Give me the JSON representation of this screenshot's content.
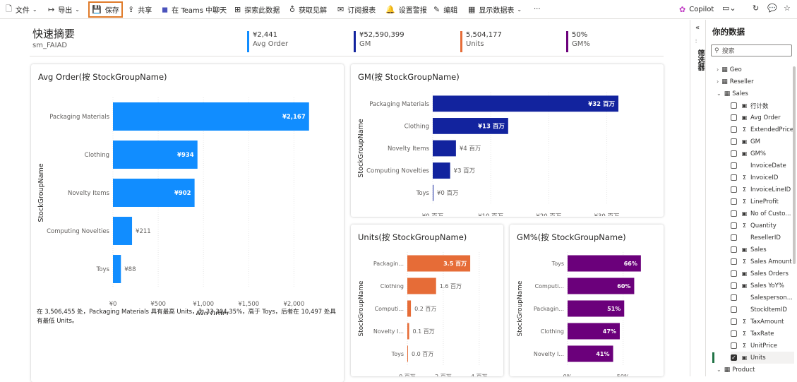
{
  "toolbar": {
    "file": "文件",
    "export": "导出",
    "save": "保存",
    "share": "共享",
    "teams": "在 Teams 中聊天",
    "explore": "探索此数据",
    "insights": "获取见解",
    "subscribe": "订阅报表",
    "alert": "设置警报",
    "edit": "编辑",
    "show_table": "显示数据表",
    "more": "···",
    "copilot": "Copilot"
  },
  "summary": {
    "title": "快速摘要",
    "subtitle": "sm_FAIAD"
  },
  "kpis": [
    {
      "value": "¥2,441",
      "label": "Avg Order",
      "color": "#118dff"
    },
    {
      "value": "¥52,590,399",
      "label": "GM",
      "color": "#12239e"
    },
    {
      "value": "5,504,177",
      "label": "Units",
      "color": "#e66c37"
    },
    {
      "value": "50%",
      "label": "GM%",
      "color": "#6b007b"
    }
  ],
  "charts": {
    "avg_order": {
      "title": "Avg Order(按 StockGroupName)",
      "xlabel": "Avg Order",
      "ylabel": "StockGroupName",
      "color": "#118dff",
      "categories": [
        "Packaging Materials",
        "Clothing",
        "Novelty Items",
        "Computing Novelties",
        "Toys"
      ],
      "values": [
        2167,
        934,
        902,
        211,
        88
      ],
      "data_labels": [
        "¥2,167",
        "¥934",
        "¥902",
        "¥211",
        "¥88"
      ],
      "xmax": 2200,
      "ticks": [
        0,
        500,
        1000,
        1500,
        2000
      ],
      "tick_labels": [
        "¥0",
        "¥500",
        "¥1,000",
        "¥1,500",
        "¥2,000"
      ],
      "narrative": "在 3,506,455 处，Packaging Materials 具有最高 Units，为 33,304.35%，高于 Toys，后者在 10,497 处具有最低 Units。"
    },
    "gm": {
      "title": "GM(按 StockGroupName)",
      "xlabel": "GM",
      "ylabel": "StockGroupName",
      "color": "#12239e",
      "categories": [
        "Packaging Materials",
        "Clothing",
        "Novelty Items",
        "Computing Novelties",
        "Toys"
      ],
      "values": [
        32,
        13,
        4,
        3,
        0
      ],
      "data_labels": [
        "¥32 百万",
        "¥13 百万",
        "¥4 百万",
        "¥3 百万",
        "¥0 百万"
      ],
      "xmax": 32,
      "ticks": [
        0,
        10,
        20,
        30
      ],
      "tick_labels": [
        "¥0 百万",
        "¥10 百万",
        "¥20 百万",
        "¥30 百万"
      ]
    },
    "units": {
      "title": "Units(按 StockGroupName)",
      "xlabel": "Units",
      "ylabel": "StockGroupName",
      "color": "#e66c37",
      "categories": [
        "Packagin...",
        "Clothing",
        "Computi...",
        "Novelty I...",
        "Toys"
      ],
      "values": [
        3.5,
        1.6,
        0.2,
        0.1,
        0.0
      ],
      "data_labels": [
        "3.5 百万",
        "1.6 百万",
        "0.2 百万",
        "0.1 百万",
        "0.0 百万"
      ],
      "xmax": 4.4,
      "ticks": [
        0,
        2,
        4
      ],
      "tick_labels": [
        "0 百万",
        "2 百万",
        "4 百万"
      ]
    },
    "gm_pct": {
      "title": "GM%(按 StockGroupName)",
      "xlabel": "GM%",
      "ylabel": "StockGroupName",
      "color": "#6b007b",
      "categories": [
        "Toys",
        "Computi...",
        "Packagin...",
        "Clothing",
        "Novelty I..."
      ],
      "values": [
        66,
        60,
        51,
        47,
        41
      ],
      "data_labels": [
        "66%",
        "60%",
        "51%",
        "47%",
        "41%"
      ],
      "xmax": 68,
      "ticks": [
        0,
        50
      ],
      "tick_labels": [
        "0%",
        "50%"
      ]
    }
  },
  "filter_pane": {
    "label": "筛选器"
  },
  "data_pane": {
    "title": "你的数据",
    "search_placeholder": "搜索",
    "tables": [
      {
        "name": "Geo",
        "expanded": false
      },
      {
        "name": "Reseller",
        "expanded": false
      },
      {
        "name": "Sales",
        "expanded": true
      },
      {
        "name": "Product",
        "expanded": true
      }
    ],
    "sales_fields": [
      {
        "name": "行计数",
        "type": "measure",
        "checked": false
      },
      {
        "name": "Avg Order",
        "type": "measure",
        "checked": false
      },
      {
        "name": "ExtendedPrice",
        "type": "sum",
        "checked": false
      },
      {
        "name": "GM",
        "type": "measure",
        "checked": false
      },
      {
        "name": "GM%",
        "type": "measure",
        "checked": false
      },
      {
        "name": "InvoiceDate",
        "type": "none",
        "checked": false
      },
      {
        "name": "InvoiceID",
        "type": "sum",
        "checked": false
      },
      {
        "name": "InvoiceLineID",
        "type": "sum",
        "checked": false
      },
      {
        "name": "LineProfit",
        "type": "sum",
        "checked": false
      },
      {
        "name": "No of Custo...",
        "type": "measure",
        "checked": false
      },
      {
        "name": "Quantity",
        "type": "sum",
        "checked": false
      },
      {
        "name": "ResellerID",
        "type": "none",
        "checked": false
      },
      {
        "name": "Sales",
        "type": "measure",
        "checked": false
      },
      {
        "name": "Sales Amount",
        "type": "sum",
        "checked": false
      },
      {
        "name": "Sales Orders",
        "type": "measure",
        "checked": false
      },
      {
        "name": "Sales YoY%",
        "type": "measure",
        "checked": false
      },
      {
        "name": "Salesperson...",
        "type": "none",
        "checked": false
      },
      {
        "name": "StockItemID",
        "type": "none",
        "checked": false
      },
      {
        "name": "TaxAmount",
        "type": "sum",
        "checked": false
      },
      {
        "name": "TaxRate",
        "type": "sum",
        "checked": false
      },
      {
        "name": "UnitPrice",
        "type": "sum",
        "checked": false
      },
      {
        "name": "Units",
        "type": "measure",
        "checked": true
      }
    ]
  }
}
